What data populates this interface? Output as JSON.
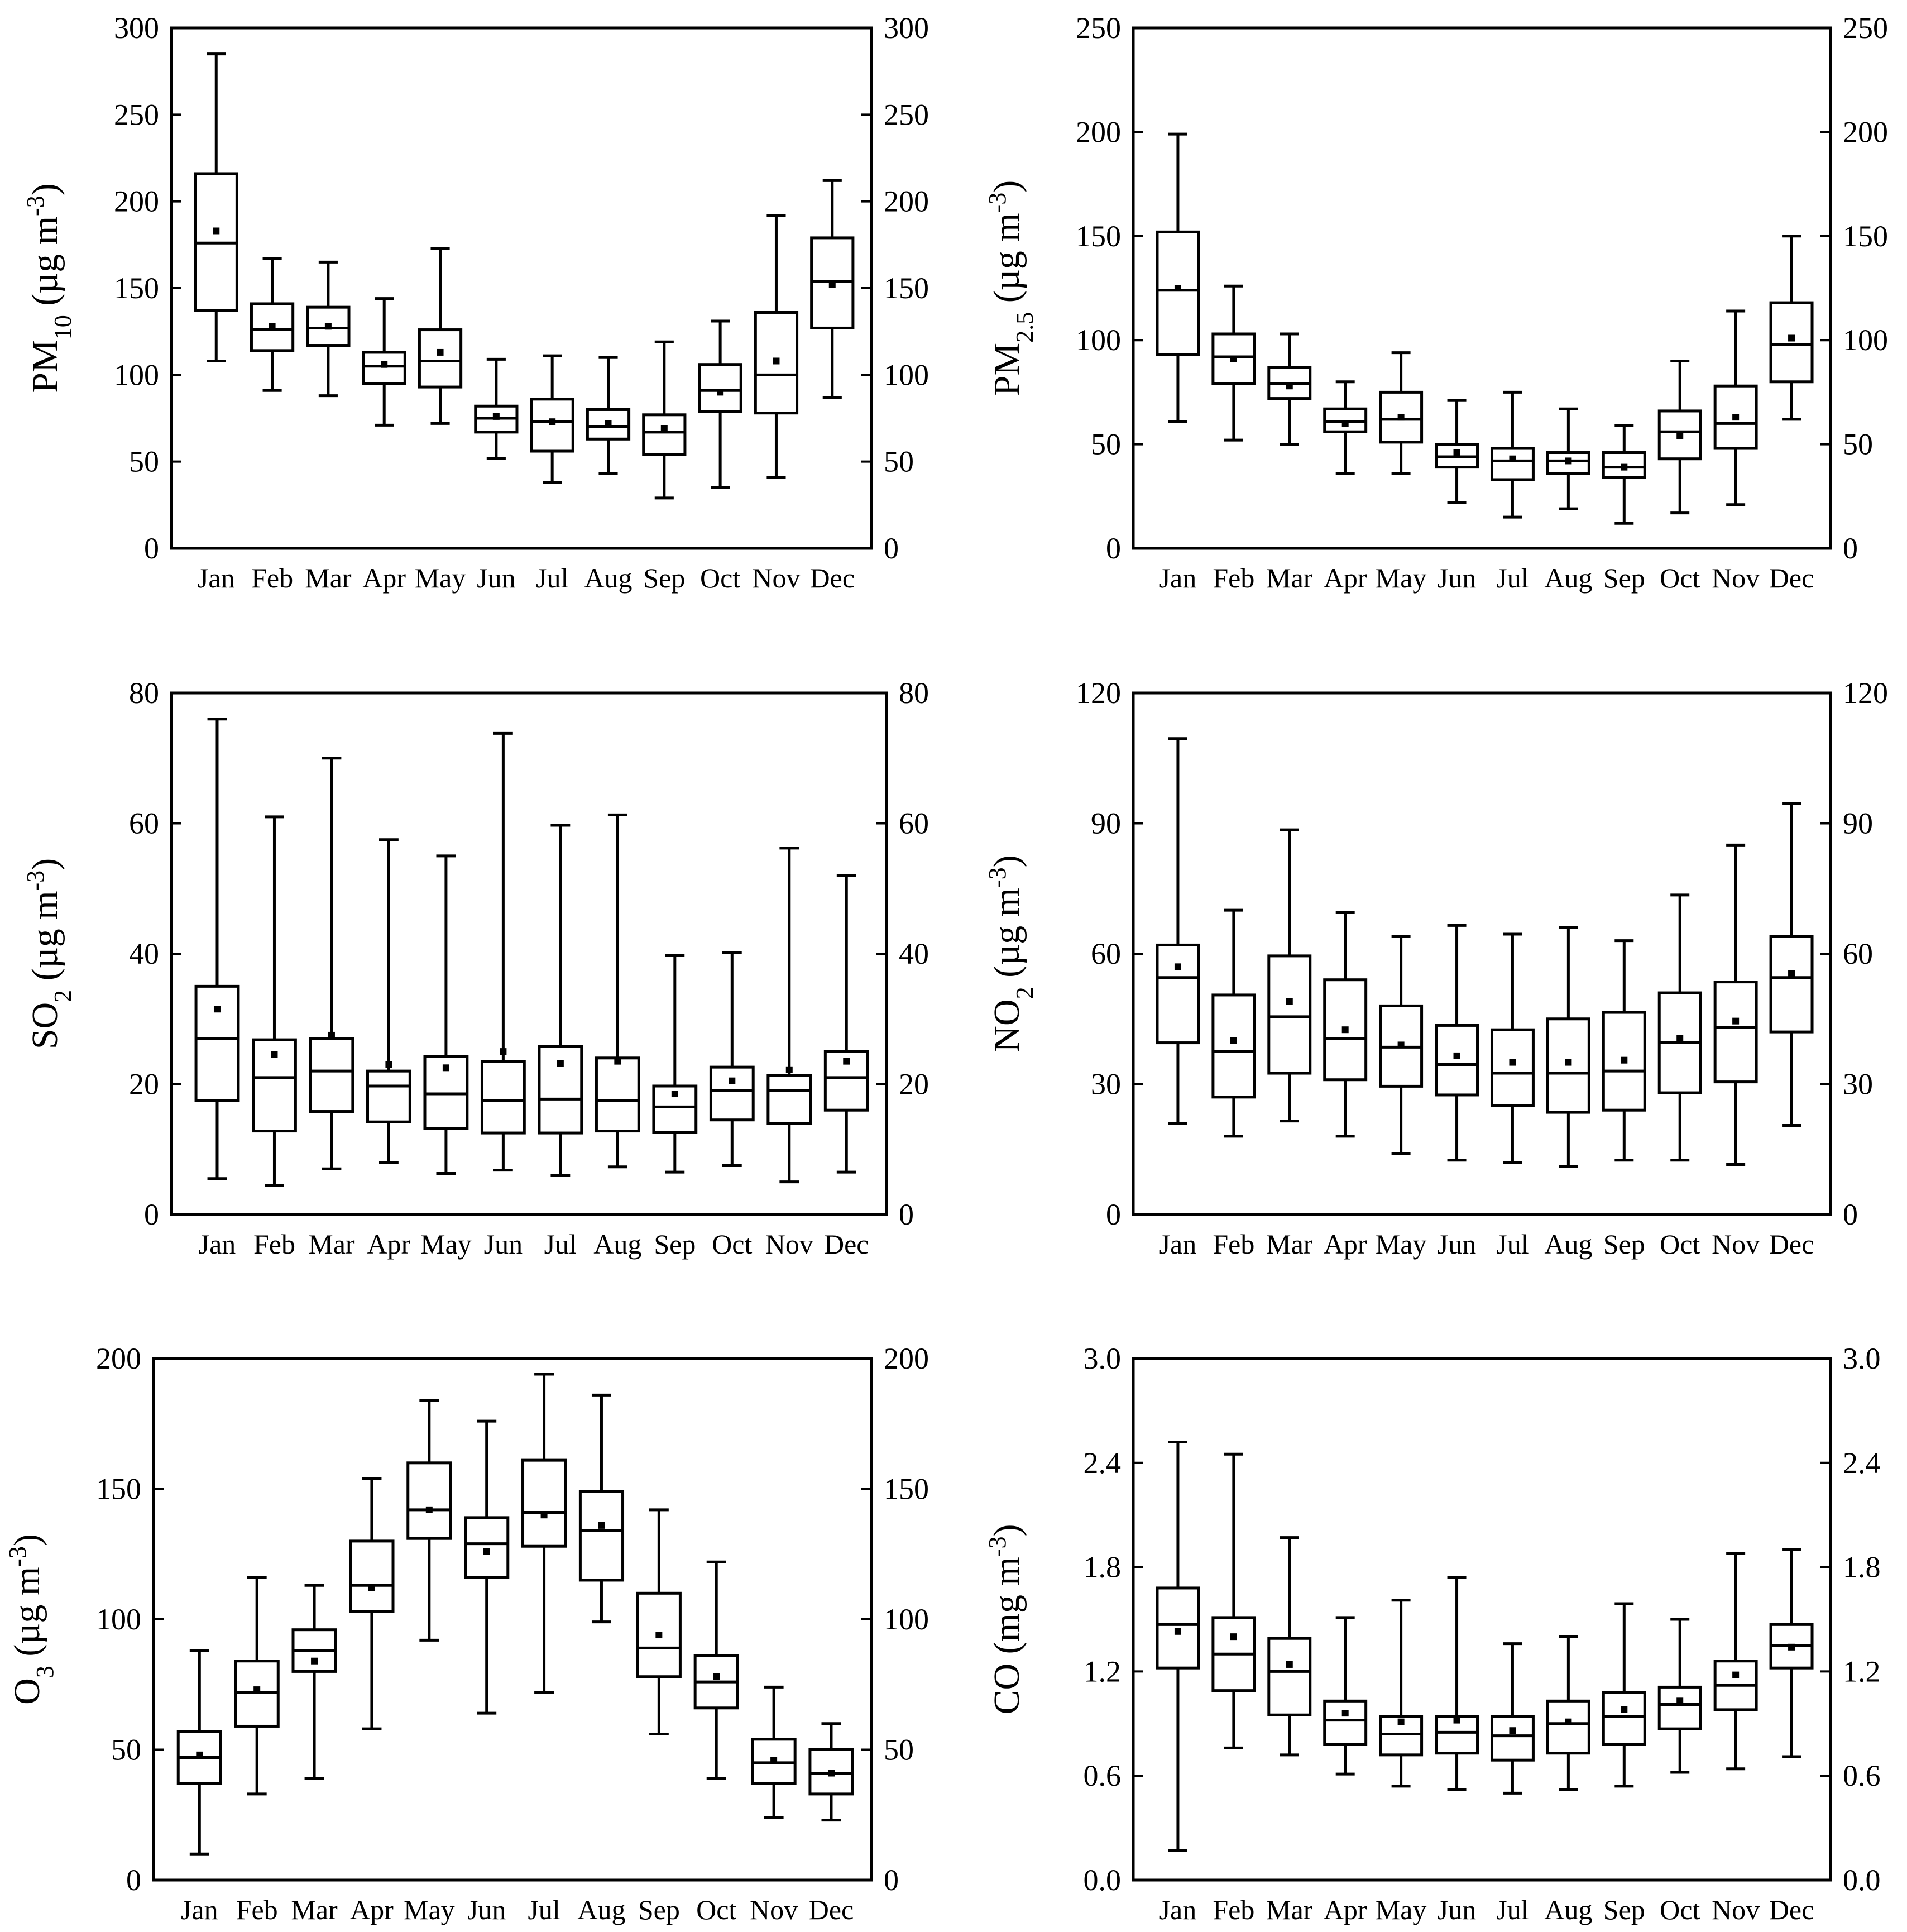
{
  "chart_data": [
    {
      "type": "box",
      "ylabel_parts": [
        "PM",
        "10",
        " (µg m",
        "-3",
        ")"
      ],
      "ylim": [
        0,
        300
      ],
      "yticks": [
        0,
        50,
        100,
        150,
        200,
        250,
        300
      ],
      "yticklabels": [
        "0",
        "50",
        "100",
        "150",
        "200",
        "250",
        "300"
      ],
      "categories": [
        "Jan",
        "Feb",
        "Mar",
        "Apr",
        "May",
        "Jun",
        "Jul",
        "Aug",
        "Sep",
        "Oct",
        "Nov",
        "Dec"
      ],
      "boxes": [
        {
          "min": 108,
          "q1": 137,
          "median": 176,
          "q3": 216,
          "max": 285,
          "mean": 183
        },
        {
          "min": 91,
          "q1": 114,
          "median": 126,
          "q3": 141,
          "max": 167,
          "mean": 128
        },
        {
          "min": 88,
          "q1": 117,
          "median": 127,
          "q3": 139,
          "max": 165,
          "mean": 128
        },
        {
          "min": 71,
          "q1": 95,
          "median": 105,
          "q3": 113,
          "max": 144,
          "mean": 106
        },
        {
          "min": 72,
          "q1": 93,
          "median": 108,
          "q3": 126,
          "max": 173,
          "mean": 113
        },
        {
          "min": 52,
          "q1": 67,
          "median": 75,
          "q3": 82,
          "max": 109,
          "mean": 76
        },
        {
          "min": 38,
          "q1": 56,
          "median": 73,
          "q3": 86,
          "max": 111,
          "mean": 73
        },
        {
          "min": 43,
          "q1": 63,
          "median": 70,
          "q3": 80,
          "max": 110,
          "mean": 72
        },
        {
          "min": 29,
          "q1": 54,
          "median": 67,
          "q3": 77,
          "max": 119,
          "mean": 69
        },
        {
          "min": 35,
          "q1": 79,
          "median": 91,
          "q3": 106,
          "max": 131,
          "mean": 90
        },
        {
          "min": 41,
          "q1": 78,
          "median": 100,
          "q3": 136,
          "max": 192,
          "mean": 108
        },
        {
          "min": 87,
          "q1": 127,
          "median": 154,
          "q3": 179,
          "max": 212,
          "mean": 152
        }
      ]
    },
    {
      "type": "box",
      "ylabel_parts": [
        "PM",
        "2.5",
        " (µg m",
        "-3",
        ")"
      ],
      "ylim": [
        0,
        250
      ],
      "yticks": [
        0,
        50,
        100,
        150,
        200,
        250
      ],
      "yticklabels": [
        "0",
        "50",
        "100",
        "150",
        "200",
        "250"
      ],
      "categories": [
        "Jan",
        "Feb",
        "Mar",
        "Apr",
        "May",
        "Jun",
        "Jul",
        "Aug",
        "Sep",
        "Oct",
        "Nov",
        "Dec"
      ],
      "boxes": [
        {
          "min": 61,
          "q1": 93,
          "median": 124,
          "q3": 152,
          "max": 199,
          "mean": 125
        },
        {
          "min": 52,
          "q1": 79,
          "median": 92,
          "q3": 103,
          "max": 126,
          "mean": 91
        },
        {
          "min": 50,
          "q1": 72,
          "median": 79,
          "q3": 87,
          "max": 103,
          "mean": 78
        },
        {
          "min": 36,
          "q1": 56,
          "median": 61,
          "q3": 67,
          "max": 80,
          "mean": 60
        },
        {
          "min": 36,
          "q1": 51,
          "median": 62,
          "q3": 75,
          "max": 94,
          "mean": 63
        },
        {
          "min": 22,
          "q1": 39,
          "median": 44,
          "q3": 50,
          "max": 71,
          "mean": 46
        },
        {
          "min": 15,
          "q1": 33,
          "median": 42,
          "q3": 48,
          "max": 75,
          "mean": 43
        },
        {
          "min": 19,
          "q1": 36,
          "median": 42,
          "q3": 46,
          "max": 67,
          "mean": 42
        },
        {
          "min": 12,
          "q1": 34,
          "median": 39,
          "q3": 46,
          "max": 59,
          "mean": 39
        },
        {
          "min": 17,
          "q1": 43,
          "median": 56,
          "q3": 66,
          "max": 90,
          "mean": 54
        },
        {
          "min": 21,
          "q1": 48,
          "median": 60,
          "q3": 78,
          "max": 114,
          "mean": 63
        },
        {
          "min": 62,
          "q1": 80,
          "median": 98,
          "q3": 118,
          "max": 150,
          "mean": 101
        }
      ]
    },
    {
      "type": "box",
      "ylabel_parts": [
        "SO",
        "2",
        " (µg m",
        "-3",
        ")"
      ],
      "ylim": [
        0,
        80
      ],
      "yticks": [
        0,
        20,
        40,
        60,
        80
      ],
      "yticklabels": [
        "0",
        "20",
        "40",
        "60",
        "80"
      ],
      "categories": [
        "Jan",
        "Feb",
        "Mar",
        "Apr",
        "May",
        "Jun",
        "Jul",
        "Aug",
        "Sep",
        "Oct",
        "Nov",
        "Dec"
      ],
      "boxes": [
        {
          "min": 5.5,
          "q1": 17.5,
          "median": 27,
          "q3": 35,
          "max": 76,
          "mean": 31.5
        },
        {
          "min": 4.5,
          "q1": 12.8,
          "median": 21,
          "q3": 26.8,
          "max": 61,
          "mean": 24.5
        },
        {
          "min": 7,
          "q1": 15.8,
          "median": 22,
          "q3": 27,
          "max": 70,
          "mean": 27.5
        },
        {
          "min": 8,
          "q1": 14.2,
          "median": 19.7,
          "q3": 22,
          "max": 57.5,
          "mean": 23
        },
        {
          "min": 6.3,
          "q1": 13.2,
          "median": 18.5,
          "q3": 24.2,
          "max": 55,
          "mean": 22.5
        },
        {
          "min": 6.8,
          "q1": 12.5,
          "median": 17.5,
          "q3": 23.5,
          "max": 73.8,
          "mean": 25
        },
        {
          "min": 6,
          "q1": 12.5,
          "median": 17.7,
          "q3": 25.8,
          "max": 59.7,
          "mean": 23.2
        },
        {
          "min": 7.3,
          "q1": 12.8,
          "median": 17.5,
          "q3": 24,
          "max": 61.3,
          "mean": 23.5
        },
        {
          "min": 6.5,
          "q1": 12.6,
          "median": 16.5,
          "q3": 19.7,
          "max": 39.7,
          "mean": 18.5
        },
        {
          "min": 7.5,
          "q1": 14.5,
          "median": 19,
          "q3": 22.6,
          "max": 40.2,
          "mean": 20.5
        },
        {
          "min": 5,
          "q1": 14,
          "median": 19,
          "q3": 21.3,
          "max": 56.2,
          "mean": 22.2
        },
        {
          "min": 6.5,
          "q1": 16,
          "median": 21,
          "q3": 25,
          "max": 52,
          "mean": 23.5
        }
      ]
    },
    {
      "type": "box",
      "ylabel_parts": [
        "NO",
        "2",
        " (µg m",
        "-3",
        ")"
      ],
      "ylim": [
        0,
        120
      ],
      "yticks": [
        0,
        30,
        60,
        90,
        120
      ],
      "yticklabels": [
        "0",
        "30",
        "60",
        "90",
        "120"
      ],
      "categories": [
        "Jan",
        "Feb",
        "Mar",
        "Apr",
        "May",
        "Jun",
        "Jul",
        "Aug",
        "Sep",
        "Oct",
        "Nov",
        "Dec"
      ],
      "boxes": [
        {
          "min": 21,
          "q1": 39.5,
          "median": 54.5,
          "q3": 62,
          "max": 109.5,
          "mean": 57
        },
        {
          "min": 18,
          "q1": 27,
          "median": 37.5,
          "q3": 50.5,
          "max": 70,
          "mean": 40
        },
        {
          "min": 21.5,
          "q1": 32.5,
          "median": 45.5,
          "q3": 59.5,
          "max": 88.5,
          "mean": 49
        },
        {
          "min": 18,
          "q1": 31,
          "median": 40.5,
          "q3": 54,
          "max": 69.5,
          "mean": 42.5
        },
        {
          "min": 14,
          "q1": 29.5,
          "median": 38.5,
          "q3": 48,
          "max": 64,
          "mean": 39
        },
        {
          "min": 12.5,
          "q1": 27.5,
          "median": 34.5,
          "q3": 43.5,
          "max": 66.5,
          "mean": 36.5
        },
        {
          "min": 12,
          "q1": 25,
          "median": 32.5,
          "q3": 42.5,
          "max": 64.5,
          "mean": 35
        },
        {
          "min": 11,
          "q1": 23.5,
          "median": 32.5,
          "q3": 45,
          "max": 66,
          "mean": 35
        },
        {
          "min": 12.5,
          "q1": 24,
          "median": 33,
          "q3": 46.5,
          "max": 63,
          "mean": 35.5
        },
        {
          "min": 12.5,
          "q1": 28,
          "median": 39.5,
          "q3": 51,
          "max": 73.5,
          "mean": 40.5
        },
        {
          "min": 11.5,
          "q1": 30.5,
          "median": 43,
          "q3": 53.5,
          "max": 85,
          "mean": 44.5
        },
        {
          "min": 20.5,
          "q1": 42,
          "median": 54.5,
          "q3": 64,
          "max": 94.5,
          "mean": 55.5
        }
      ]
    },
    {
      "type": "box",
      "ylabel_parts": [
        "O",
        "3",
        " (µg m",
        "-3",
        ")"
      ],
      "ylim": [
        0,
        200
      ],
      "yticks": [
        0,
        50,
        100,
        150,
        200
      ],
      "yticklabels": [
        "0",
        "50",
        "100",
        "150",
        "200"
      ],
      "categories": [
        "Jan",
        "Feb",
        "Mar",
        "Apr",
        "May",
        "Jun",
        "Jul",
        "Aug",
        "Sep",
        "Oct",
        "Nov",
        "Dec"
      ],
      "boxes": [
        {
          "min": 10,
          "q1": 37,
          "median": 47,
          "q3": 57,
          "max": 88,
          "mean": 48
        },
        {
          "min": 33,
          "q1": 59,
          "median": 72,
          "q3": 84,
          "max": 116,
          "mean": 73
        },
        {
          "min": 39,
          "q1": 80,
          "median": 88,
          "q3": 96,
          "max": 113,
          "mean": 84
        },
        {
          "min": 58,
          "q1": 103,
          "median": 113,
          "q3": 130,
          "max": 154,
          "mean": 112
        },
        {
          "min": 92,
          "q1": 131,
          "median": 142,
          "q3": 160,
          "max": 184,
          "mean": 142
        },
        {
          "min": 64,
          "q1": 116,
          "median": 129,
          "q3": 139,
          "max": 176,
          "mean": 126
        },
        {
          "min": 72,
          "q1": 128,
          "median": 141,
          "q3": 161,
          "max": 194,
          "mean": 140
        },
        {
          "min": 99,
          "q1": 115,
          "median": 134,
          "q3": 149,
          "max": 186,
          "mean": 136
        },
        {
          "min": 56,
          "q1": 78,
          "median": 89,
          "q3": 110,
          "max": 142,
          "mean": 94
        },
        {
          "min": 39,
          "q1": 66,
          "median": 76,
          "q3": 86,
          "max": 122,
          "mean": 78
        },
        {
          "min": 24,
          "q1": 37,
          "median": 45,
          "q3": 54,
          "max": 74,
          "mean": 46
        },
        {
          "min": 23,
          "q1": 33,
          "median": 41,
          "q3": 50,
          "max": 60,
          "mean": 41
        }
      ]
    },
    {
      "type": "box",
      "ylabel_parts": [
        "CO (mg m",
        "-3",
        ")"
      ],
      "ylim": [
        0,
        3
      ],
      "yticks": [
        0,
        0.6,
        1.2,
        1.8,
        2.4,
        3.0
      ],
      "yticklabels": [
        "0.0",
        "0.6",
        "1.2",
        "1.8",
        "2.4",
        "3.0"
      ],
      "categories": [
        "Jan",
        "Feb",
        "Mar",
        "Apr",
        "May",
        "Jun",
        "Jul",
        "Aug",
        "Sep",
        "Oct",
        "Nov",
        "Dec"
      ],
      "boxes": [
        {
          "min": 0.17,
          "q1": 1.22,
          "median": 1.47,
          "q3": 1.68,
          "max": 2.52,
          "mean": 1.43
        },
        {
          "min": 0.76,
          "q1": 1.09,
          "median": 1.3,
          "q3": 1.51,
          "max": 2.45,
          "mean": 1.4
        },
        {
          "min": 0.72,
          "q1": 0.95,
          "median": 1.2,
          "q3": 1.39,
          "max": 1.97,
          "mean": 1.24
        },
        {
          "min": 0.61,
          "q1": 0.78,
          "median": 0.92,
          "q3": 1.03,
          "max": 1.51,
          "mean": 0.96
        },
        {
          "min": 0.54,
          "q1": 0.72,
          "median": 0.84,
          "q3": 0.94,
          "max": 1.61,
          "mean": 0.91
        },
        {
          "min": 0.52,
          "q1": 0.73,
          "median": 0.85,
          "q3": 0.94,
          "max": 1.74,
          "mean": 0.92
        },
        {
          "min": 0.5,
          "q1": 0.69,
          "median": 0.83,
          "q3": 0.94,
          "max": 1.36,
          "mean": 0.86
        },
        {
          "min": 0.52,
          "q1": 0.73,
          "median": 0.9,
          "q3": 1.03,
          "max": 1.4,
          "mean": 0.91
        },
        {
          "min": 0.54,
          "q1": 0.78,
          "median": 0.94,
          "q3": 1.08,
          "max": 1.59,
          "mean": 0.98
        },
        {
          "min": 0.62,
          "q1": 0.87,
          "median": 1.01,
          "q3": 1.11,
          "max": 1.5,
          "mean": 1.03
        },
        {
          "min": 0.64,
          "q1": 0.98,
          "median": 1.12,
          "q3": 1.26,
          "max": 1.88,
          "mean": 1.18
        },
        {
          "min": 0.71,
          "q1": 1.22,
          "median": 1.35,
          "q3": 1.47,
          "max": 1.9,
          "mean": 1.34
        }
      ]
    }
  ]
}
